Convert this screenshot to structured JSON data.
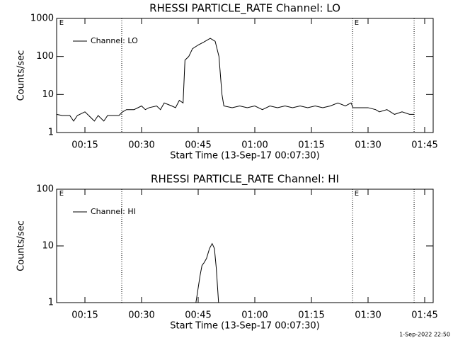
{
  "chart_data": [
    {
      "type": "line",
      "title": "RHESSI PARTICLE_RATE Channel: LO",
      "xlabel": "Start Time (13-Sep-17 00:07:30)",
      "ylabel": "Counts/sec",
      "log_y": true,
      "color": "#000000",
      "xlim": [
        7.5,
        107.25
      ],
      "ylim": [
        1,
        1000
      ],
      "xticks": [
        {
          "value": 15,
          "label": "00:15"
        },
        {
          "value": 30,
          "label": "00:30"
        },
        {
          "value": 45,
          "label": "00:45"
        },
        {
          "value": 60,
          "label": "01:00"
        },
        {
          "value": 75,
          "label": "01:15"
        },
        {
          "value": 90,
          "label": "01:30"
        },
        {
          "value": 105,
          "label": "01:45"
        }
      ],
      "yticks": [
        1,
        10,
        100,
        1000
      ],
      "vlines": [
        24.75,
        85.9,
        102.2
      ],
      "annotations": [
        {
          "text": "E",
          "x": 8.2
        },
        {
          "text": "E",
          "x": 86.4
        }
      ],
      "series": [
        {
          "name": "Channel: LO",
          "color": "#000000",
          "x": [
            7.5,
            9,
            11,
            12,
            13,
            15,
            16,
            17.5,
            18.5,
            20,
            21,
            24,
            25,
            26,
            28,
            30,
            31,
            32,
            34,
            35,
            36,
            38,
            39,
            40,
            41,
            41.5,
            42.5,
            43.5,
            45,
            46.5,
            48.2,
            49.5,
            50.5,
            51.3,
            51.8,
            54,
            56,
            58,
            60,
            62,
            64,
            66,
            68,
            70,
            72,
            74,
            76,
            78,
            80,
            82,
            84,
            85.5,
            86,
            88,
            90,
            92,
            93,
            95,
            97,
            99,
            101,
            102.2
          ],
          "values": [
            3,
            2.8,
            2.8,
            2,
            2.8,
            3.5,
            2.8,
            2,
            2.8,
            2,
            2.8,
            2.8,
            3.5,
            4,
            4,
            5,
            4,
            4.5,
            5,
            4,
            6,
            5,
            4.5,
            7,
            6,
            80,
            100,
            160,
            200,
            240,
            300,
            250,
            100,
            10,
            5,
            4.5,
            5,
            4.5,
            5,
            4,
            5,
            4.5,
            5,
            4.5,
            5,
            4.5,
            5,
            4.5,
            5,
            6,
            5,
            6,
            4.5,
            4.5,
            4.5,
            4,
            3.5,
            4,
            3,
            3.5,
            3,
            3
          ]
        }
      ]
    },
    {
      "type": "line",
      "title": "RHESSI PARTICLE_RATE Channel: HI",
      "xlabel": "Start Time (13-Sep-17 00:07:30)",
      "ylabel": "Counts/sec",
      "log_y": true,
      "color": "#000000",
      "xlim": [
        7.5,
        107.25
      ],
      "ylim": [
        1,
        100
      ],
      "xticks": [
        {
          "value": 15,
          "label": "00:15"
        },
        {
          "value": 30,
          "label": "00:30"
        },
        {
          "value": 45,
          "label": "00:45"
        },
        {
          "value": 60,
          "label": "01:00"
        },
        {
          "value": 75,
          "label": "01:15"
        },
        {
          "value": 90,
          "label": "01:30"
        },
        {
          "value": 105,
          "label": "01:45"
        }
      ],
      "yticks": [
        1,
        10,
        100
      ],
      "vlines": [
        24.75,
        85.9,
        102.2
      ],
      "annotations": [
        {
          "text": "E",
          "x": 8.2
        },
        {
          "text": "E",
          "x": 86.4
        }
      ],
      "series": [
        {
          "name": "Channel: HI",
          "color": "#000000",
          "x": [
            44.4,
            45.5,
            46,
            46.5,
            47.2,
            48,
            48.7,
            49.3,
            49.8,
            50.4
          ],
          "values": [
            1,
            3,
            4.5,
            5,
            6,
            9,
            11,
            9,
            4,
            1
          ]
        }
      ]
    }
  ],
  "footer": "1-Sep-2022 22:50"
}
